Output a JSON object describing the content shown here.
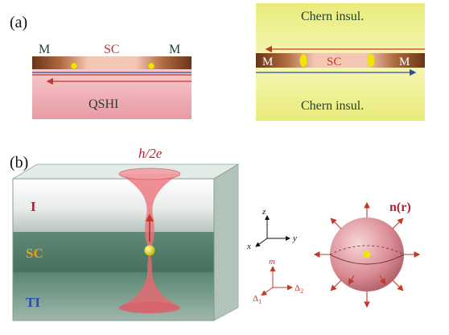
{
  "panel_a": {
    "label": "(a)",
    "left": {
      "m_left": "M",
      "sc": "SC",
      "m_right": "M",
      "bottom": "QSHI"
    },
    "right": {
      "top": "Chern insul.",
      "m_left": "M",
      "sc": "SC",
      "m_right": "M",
      "bottom": "Chern insul."
    }
  },
  "panel_b": {
    "label": "(b)",
    "flux": "h/2e",
    "layers": {
      "i": "I",
      "sc": "SC",
      "ti": "TI"
    },
    "axes": {
      "z": "z",
      "x": "x",
      "y": "y"
    },
    "gap_axes": {
      "m": "m",
      "d1": "Δ",
      "d1_sub": "1",
      "d2": "Δ",
      "d2_sub": "2"
    },
    "sphere_label": "n(r)"
  },
  "colors": {
    "accent_red": "#c0392b",
    "edge_blue": "#2e4fa0",
    "layer_i": "#b02030",
    "layer_sc": "#e6a020",
    "layer_ti": "#2a4fa0",
    "chern_yellow": "#eef08a",
    "qshi_pink": "#f0a8b0",
    "majorana_yellow": "#f2e600"
  }
}
